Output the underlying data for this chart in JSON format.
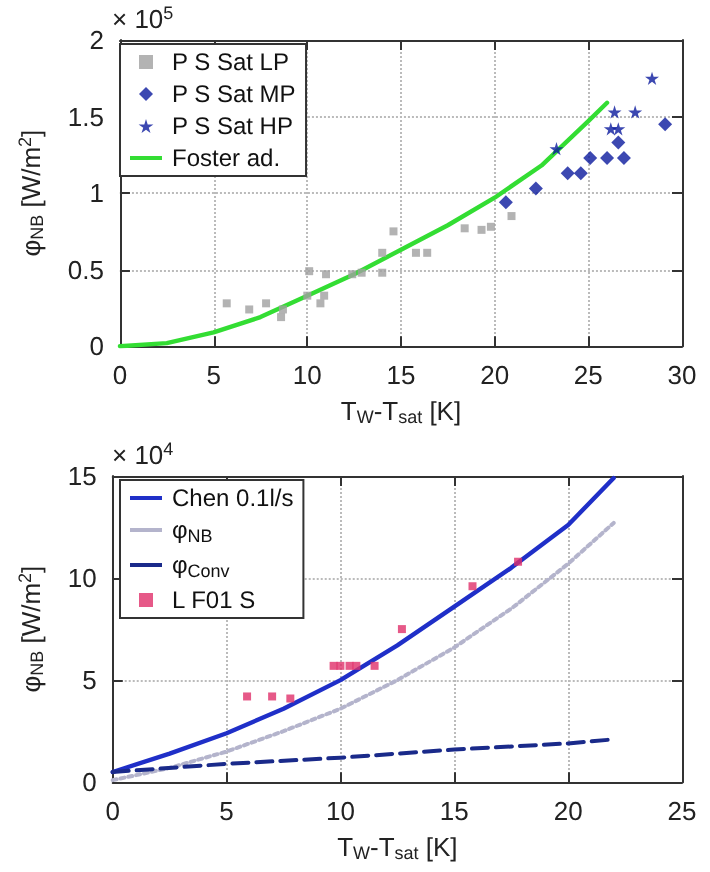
{
  "chart_data": [
    {
      "type": "scatter",
      "xlabel": "T$_{W}$-T$_{sat}$ [K]",
      "ylabel": "φ$_{NB}$ [W/m$^{2}$]",
      "xlim": [
        0,
        30
      ],
      "xticks": [
        0,
        5,
        10,
        15,
        20,
        25,
        30
      ],
      "ylim": [
        0,
        2
      ],
      "yticks": [
        0,
        0.5,
        1,
        1.5,
        2
      ],
      "grid": true,
      "legend": "top left",
      "annotations": [
        "× 10$^{5}$"
      ],
      "series": [
        {
          "name": "P S Sat LP",
          "color": "#a0a0a0",
          "marker": "square",
          "x": [
            5.7,
            6.9,
            7.8,
            8.6,
            8.7,
            10.1,
            10.0,
            10.7,
            10.9,
            11.0,
            12.4,
            12.9,
            14.0,
            14.0,
            14.6,
            15.8,
            16.4,
            18.4,
            19.3,
            19.8,
            20.9
          ],
          "values": [
            0.28,
            0.24,
            0.28,
            0.19,
            0.24,
            0.49,
            0.33,
            0.28,
            0.33,
            0.47,
            0.47,
            0.48,
            0.61,
            0.48,
            0.75,
            0.61,
            0.61,
            0.77,
            0.76,
            0.78,
            0.85
          ]
        },
        {
          "name": "P S Sat MP",
          "color": "#0b1a9e",
          "marker": "diamond",
          "x": [
            20.6,
            22.2,
            23.9,
            24.6,
            25.1,
            26.0,
            26.6,
            26.9,
            29.1
          ],
          "values": [
            0.94,
            1.03,
            1.13,
            1.13,
            1.23,
            1.23,
            1.33,
            1.23,
            1.45
          ]
        },
        {
          "name": "P S Sat HP",
          "color": "#0b1a9e",
          "marker": "star",
          "x": [
            23.3,
            26.2,
            26.4,
            26.6,
            27.5,
            28.4
          ],
          "values": [
            1.29,
            1.42,
            1.53,
            1.42,
            1.53,
            1.75
          ]
        },
        {
          "name": "Foster ad.",
          "color": "#33dd33",
          "type": "line",
          "marker": "none",
          "line_style": "solid",
          "x": [
            0,
            2.5,
            5,
            7.5,
            10,
            12.5,
            15,
            17.5,
            20,
            22.5,
            25,
            26
          ],
          "values": [
            0,
            0.02,
            0.09,
            0.19,
            0.33,
            0.47,
            0.63,
            0.79,
            0.97,
            1.18,
            1.47,
            1.59
          ]
        }
      ]
    },
    {
      "type": "line",
      "xlabel": "T$_{W}$-T$_{sat}$ [K]",
      "ylabel": "φ$_{NB}$ [W/m$^{2}$]",
      "xlim": [
        0,
        25
      ],
      "xticks": [
        0,
        5,
        10,
        15,
        20,
        25
      ],
      "ylim": [
        0,
        15
      ],
      "yticks": [
        0,
        5,
        10,
        15
      ],
      "grid": true,
      "legend": "top left",
      "annotations": [
        "× 10$^{4}$"
      ],
      "series": [
        {
          "name": "Chen 0.1l/s",
          "color": "#1f2fc8",
          "marker": "none",
          "line_style": "solid",
          "x": [
            0,
            2.5,
            5,
            7.5,
            10,
            12.5,
            15,
            17.5,
            20,
            22
          ],
          "values": [
            0.5,
            1.4,
            2.4,
            3.6,
            5.0,
            6.7,
            8.6,
            10.5,
            12.6,
            14.9
          ]
        },
        {
          "name": "φ$_{NB}$",
          "color": "#b4b4cc",
          "marker": "none",
          "line_style": "dotted",
          "x": [
            0,
            2.5,
            5,
            7.5,
            10,
            12.5,
            15,
            17.5,
            20,
            22
          ],
          "values": [
            0.1,
            0.7,
            1.5,
            2.5,
            3.6,
            5.0,
            6.6,
            8.5,
            10.7,
            12.7
          ]
        },
        {
          "name": "φ$_{Conv}$",
          "color": "#1a2a8a",
          "marker": "none",
          "line_style": "dashed",
          "x": [
            0,
            5,
            10,
            15,
            20,
            22
          ],
          "values": [
            0.5,
            0.9,
            1.2,
            1.6,
            1.9,
            2.1
          ]
        },
        {
          "name": "L F01 S",
          "color": "#e0306a",
          "type": "scatter",
          "marker": "square",
          "x": [
            5.9,
            7.0,
            7.8,
            9.7,
            10.0,
            10.4,
            10.7,
            11.5,
            12.7,
            15.8,
            17.8
          ],
          "values": [
            4.2,
            4.2,
            4.1,
            5.7,
            5.7,
            5.7,
            5.7,
            5.7,
            7.5,
            9.6,
            10.8
          ]
        }
      ]
    }
  ]
}
